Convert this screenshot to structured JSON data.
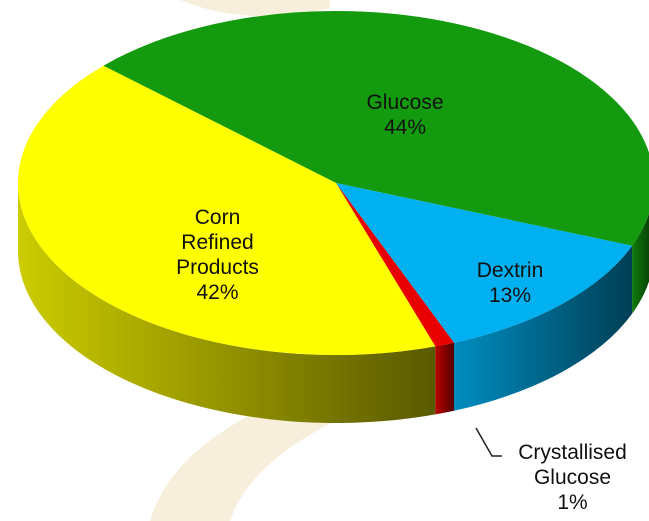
{
  "chart_data": {
    "type": "pie",
    "categories": [
      "Glucose",
      "Dextrin",
      "Crystallised Glucose",
      "Corn Refined Products"
    ],
    "values": [
      44,
      13,
      1,
      42
    ],
    "value_labels": [
      "44%",
      "13%",
      "1%",
      "42%"
    ],
    "colors": [
      "#139a0e",
      "#00b0f0",
      "#e80000",
      "#ffff00"
    ]
  }
}
